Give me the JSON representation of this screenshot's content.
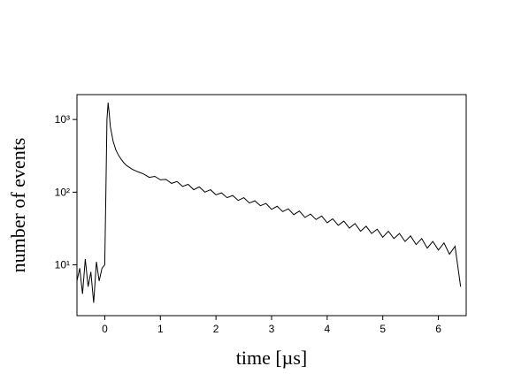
{
  "chart_data": {
    "type": "line",
    "xlabel": "time [µs]",
    "ylabel": "number of events",
    "x": [
      -0.5,
      -0.45,
      -0.4,
      -0.35,
      -0.3,
      -0.25,
      -0.2,
      -0.15,
      -0.1,
      -0.05,
      0,
      0.02,
      0.04,
      0.06,
      0.08,
      0.1,
      0.15,
      0.2,
      0.25,
      0.3,
      0.35,
      0.4,
      0.5,
      0.6,
      0.7,
      0.8,
      0.9,
      1.0,
      1.1,
      1.2,
      1.3,
      1.4,
      1.5,
      1.6,
      1.7,
      1.8,
      1.9,
      2.0,
      2.1,
      2.2,
      2.3,
      2.4,
      2.5,
      2.6,
      2.7,
      2.8,
      2.9,
      3.0,
      3.1,
      3.2,
      3.3,
      3.4,
      3.5,
      3.6,
      3.7,
      3.8,
      3.9,
      4.0,
      4.1,
      4.2,
      4.3,
      4.4,
      4.5,
      4.6,
      4.7,
      4.8,
      4.9,
      5.0,
      5.1,
      5.2,
      5.3,
      5.4,
      5.5,
      5.6,
      5.7,
      5.8,
      5.9,
      6.0,
      6.1,
      6.2,
      6.3,
      6.4
    ],
    "values": [
      6,
      9,
      4,
      12,
      5,
      8,
      3,
      11,
      6,
      9,
      10,
      100,
      1000,
      1700,
      1200,
      800,
      500,
      380,
      320,
      280,
      250,
      230,
      205,
      190,
      178,
      160,
      165,
      148,
      150,
      132,
      140,
      120,
      128,
      108,
      118,
      100,
      108,
      92,
      98,
      84,
      90,
      77,
      84,
      71,
      76,
      65,
      70,
      58,
      64,
      54,
      59,
      49,
      55,
      45,
      50,
      42,
      47,
      38,
      43,
      35,
      40,
      32,
      37,
      29,
      34,
      27,
      31,
      24,
      29,
      23,
      27,
      21,
      25,
      19,
      23,
      17,
      21,
      16,
      20,
      14,
      18,
      5
    ],
    "color": "#000000",
    "xlim": [
      -0.5,
      6.5
    ],
    "xticks": [
      0,
      1,
      2,
      3,
      4,
      5,
      6
    ],
    "ylim": [
      2,
      2200
    ],
    "log_y": true,
    "yticks": [
      {
        "value": 10,
        "label": "10¹"
      },
      {
        "value": 100,
        "label": "10²"
      },
      {
        "value": 1000,
        "label": "10³"
      }
    ]
  }
}
